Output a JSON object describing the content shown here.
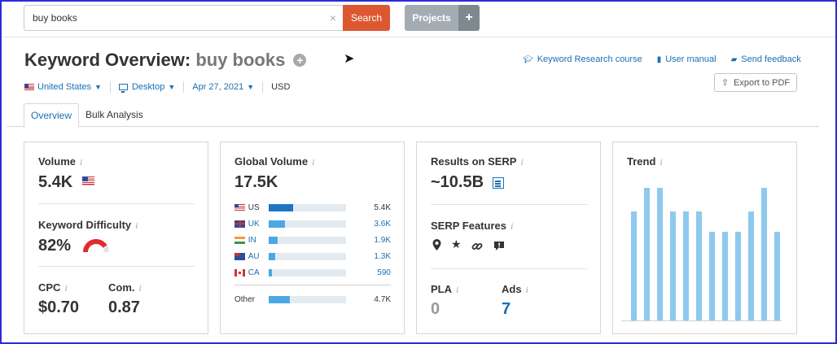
{
  "search": {
    "value": "buy books",
    "clear": "×",
    "button_label": "Search"
  },
  "projects": {
    "label": "Projects",
    "plus": "+"
  },
  "header": {
    "title_prefix": "Keyword Overview:",
    "keyword": "buy books",
    "add_icon": "plus-circle-icon",
    "filters": {
      "country": "United States",
      "device": "Desktop",
      "date": "Apr 27, 2021",
      "currency": "USD"
    },
    "links": {
      "course": "Keyword Research course",
      "manual": "User manual",
      "feedback": "Send feedback"
    },
    "export_label": "Export to PDF"
  },
  "tabs": {
    "overview": "Overview",
    "bulk": "Bulk Analysis"
  },
  "cards": {
    "volume": {
      "label": "Volume",
      "value": "5.4K",
      "info": "i"
    },
    "difficulty": {
      "label": "Keyword Difficulty",
      "value": "82%",
      "percent": 82,
      "info": "i"
    },
    "cpc": {
      "label": "CPC",
      "value": "$0.70",
      "info": "i"
    },
    "com": {
      "label": "Com.",
      "value": "0.87",
      "info": "i"
    },
    "global": {
      "label": "Global Volume",
      "value": "17.5K",
      "info": "i",
      "rows": [
        {
          "code": "US",
          "value": "5.4K",
          "fill": 0.31
        },
        {
          "code": "UK",
          "value": "3.6K",
          "fill": 0.21
        },
        {
          "code": "IN",
          "value": "1.9K",
          "fill": 0.11
        },
        {
          "code": "AU",
          "value": "1.3K",
          "fill": 0.08
        },
        {
          "code": "CA",
          "value": "590",
          "fill": 0.04
        }
      ],
      "other": {
        "label": "Other",
        "value": "4.7K",
        "fill": 0.27
      }
    },
    "serp": {
      "label": "Results on SERP",
      "value": "~10.5B",
      "info": "i"
    },
    "features": {
      "label": "SERP Features",
      "info": "i",
      "icons": [
        "location-pin-icon",
        "star-icon",
        "link-icon",
        "review-icon"
      ]
    },
    "pla": {
      "label": "PLA",
      "value": "0",
      "info": "i"
    },
    "ads": {
      "label": "Ads",
      "value": "7",
      "info": "i"
    },
    "trend": {
      "label": "Trend",
      "info": "i",
      "values": [
        0.82,
        1.0,
        1.0,
        0.82,
        0.82,
        0.82,
        0.67,
        0.67,
        0.67,
        0.82,
        1.0,
        0.67
      ]
    }
  },
  "colors": {
    "accent": "#1a6fb3",
    "search": "#dd5830",
    "bar": "#4ba8e5",
    "trend": "#8ec9ee",
    "gauge": "#e02c2c"
  }
}
